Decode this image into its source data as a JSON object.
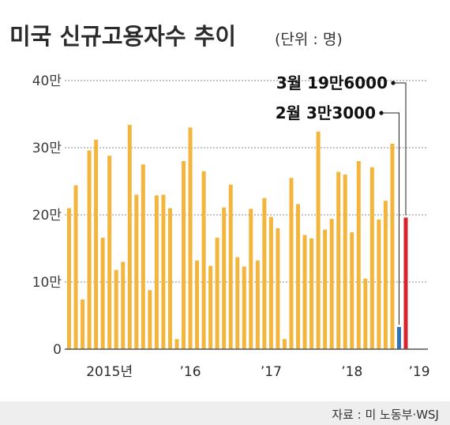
{
  "title": "미국 신규고용자수 추이",
  "unit": "(단위 : 명)",
  "source": "자료 : 미 노동부·WSJ",
  "colors": {
    "bar": "#f3b53c",
    "feb_bar": "#2f72b8",
    "mar_bar": "#d9232c",
    "grid": "#888888",
    "axis": "#555555",
    "source_bg": "#eeeeee"
  },
  "chart_data": {
    "type": "bar",
    "ylim": [
      0,
      400000
    ],
    "yticks": [
      0,
      100000,
      200000,
      300000,
      400000
    ],
    "ytick_labels": [
      "0",
      "10만",
      "20만",
      "30만",
      "40만"
    ],
    "xtick_labels": [
      {
        "text": "2015년",
        "index": 6
      },
      {
        "text": "’16",
        "index": 18
      },
      {
        "text": "’17",
        "index": 30
      },
      {
        "text": "’18",
        "index": 42
      },
      {
        "text": "’19",
        "index": 52
      }
    ],
    "values": [
      210000,
      244000,
      74000,
      296000,
      312000,
      166000,
      288000,
      118000,
      130000,
      334000,
      230000,
      275000,
      88000,
      229000,
      230000,
      210000,
      15000,
      280000,
      330000,
      132000,
      265000,
      124000,
      166000,
      211000,
      245000,
      137000,
      123000,
      209000,
      132000,
      225000,
      197000,
      180000,
      15000,
      255000,
      216000,
      170000,
      165000,
      324000,
      178000,
      194000,
      264000,
      260000,
      174000,
      280000,
      105000,
      271000,
      193000,
      221000,
      306000,
      33000,
      196000
    ],
    "annotations": [
      {
        "text": "3월 19만6000",
        "bar_index": 50
      },
      {
        "text": "2월 3만3000",
        "bar_index": 49
      }
    ]
  }
}
